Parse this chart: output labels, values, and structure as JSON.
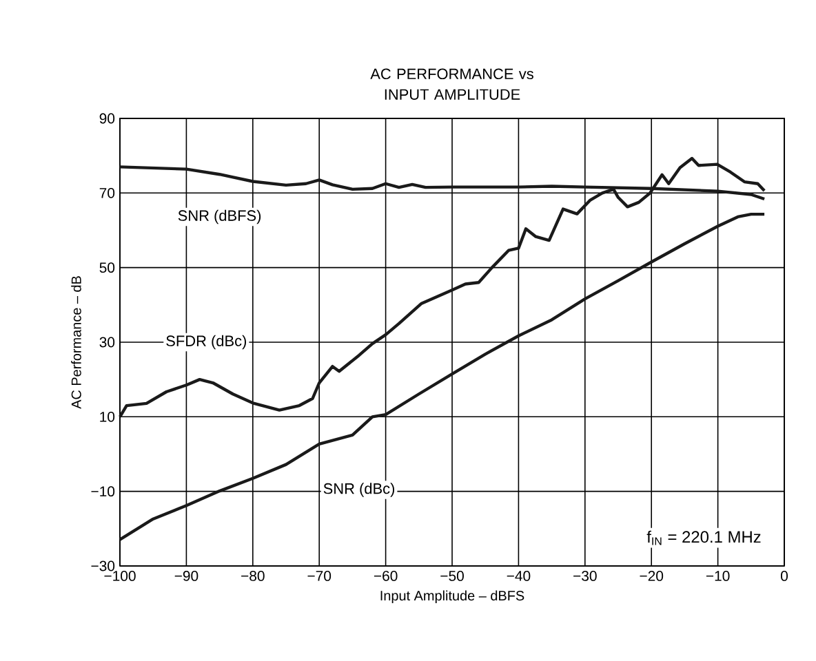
{
  "chart_data": {
    "type": "line",
    "title": "AC PERFORMANCE vs INPUT AMPLITUDE",
    "xlabel": "Input Amplitude – dBFS",
    "ylabel": "AC Performance – dB",
    "xlim": [
      -100,
      0
    ],
    "ylim": [
      -30,
      90
    ],
    "xticks": [
      {
        "value": -100,
        "label": "−100"
      },
      {
        "value": -90,
        "label": "−90"
      },
      {
        "value": -80,
        "label": "−80"
      },
      {
        "value": -70,
        "label": "−70"
      },
      {
        "value": -60,
        "label": "−60"
      },
      {
        "value": -50,
        "label": "−50"
      },
      {
        "value": -40,
        "label": "−40"
      },
      {
        "value": -30,
        "label": "−30"
      },
      {
        "value": -20,
        "label": "−20"
      },
      {
        "value": -10,
        "label": "−10"
      },
      0
    ],
    "yticks": [
      {
        "value": -30,
        "label": "−30"
      },
      {
        "value": -10,
        "label": "−10"
      },
      10,
      30,
      50,
      70,
      90
    ],
    "grid": true,
    "marker": "none",
    "line_style": "solid",
    "annotations": [
      "f$_{IN}$ = 220.1 MHz"
    ],
    "series": [
      {
        "name": "SNR (dBFS)",
        "color": "#1a1a1a",
        "x": [
          -100,
          -90,
          -85,
          -80,
          -75,
          -72,
          -70,
          -68,
          -65,
          -62,
          -60,
          -58,
          -56,
          -54,
          -50,
          -40,
          -35,
          -30,
          -20,
          -10,
          -5,
          -3
        ],
        "values": [
          77,
          76.4,
          75,
          73.1,
          72.1,
          72.5,
          73.5,
          72.2,
          71,
          71.2,
          72.5,
          71.5,
          72.3,
          71.5,
          71.6,
          71.6,
          71.8,
          71.6,
          71.2,
          70.5,
          69.6,
          68.4
        ]
      },
      {
        "name": "SFDR (dBc)",
        "color": "#1a1a1a",
        "x": [
          -100,
          -99,
          -96,
          -93,
          -90,
          -88,
          -86,
          -83,
          -80,
          -76,
          -73,
          -71,
          -70,
          -68,
          -67,
          -64,
          -62,
          -60,
          -58,
          -54.6,
          -50,
          -48,
          -46,
          -44,
          -41.5,
          -40,
          -38.9,
          -37.4,
          -35.4,
          -33.3,
          -31.2,
          -29.2,
          -27.4,
          -25.7,
          -25,
          -23.6,
          -21.9,
          -20.2,
          -18.4,
          -17.4,
          -15.7,
          -13.9,
          -12.9,
          -10.1,
          -8.1,
          -6,
          -4,
          -3
        ],
        "values": [
          10,
          13,
          13.6,
          16.7,
          18.5,
          20,
          19.1,
          16.1,
          13.7,
          11.8,
          13,
          14.9,
          19.1,
          23.5,
          22.2,
          26.5,
          29.6,
          32,
          35,
          40.4,
          44,
          45.6,
          46,
          50,
          54.6,
          55.2,
          60.4,
          58.3,
          57.3,
          65.7,
          64.4,
          68.1,
          70,
          71,
          68.8,
          66.3,
          67.5,
          70,
          74.9,
          72.5,
          76.8,
          79.3,
          77.4,
          77.7,
          75.6,
          73,
          72.5,
          70.6
        ]
      },
      {
        "name": "SNR (dBc)",
        "color": "#1a1a1a",
        "x": [
          -100,
          -95,
          -90,
          -85,
          -80,
          -75,
          -70,
          -65,
          -62,
          -60,
          -55,
          -50,
          -45,
          -40,
          -35,
          -30,
          -25,
          -20,
          -15,
          -10,
          -7,
          -5,
          -3
        ],
        "values": [
          -22.9,
          -17.4,
          -13.8,
          -9.9,
          -6.5,
          -2.8,
          2.7,
          5.1,
          10,
          10.6,
          16.1,
          21.5,
          26.8,
          31.7,
          36,
          41.6,
          46.5,
          51.5,
          56.4,
          61.1,
          63.6,
          64.3,
          64.3
        ]
      }
    ]
  }
}
